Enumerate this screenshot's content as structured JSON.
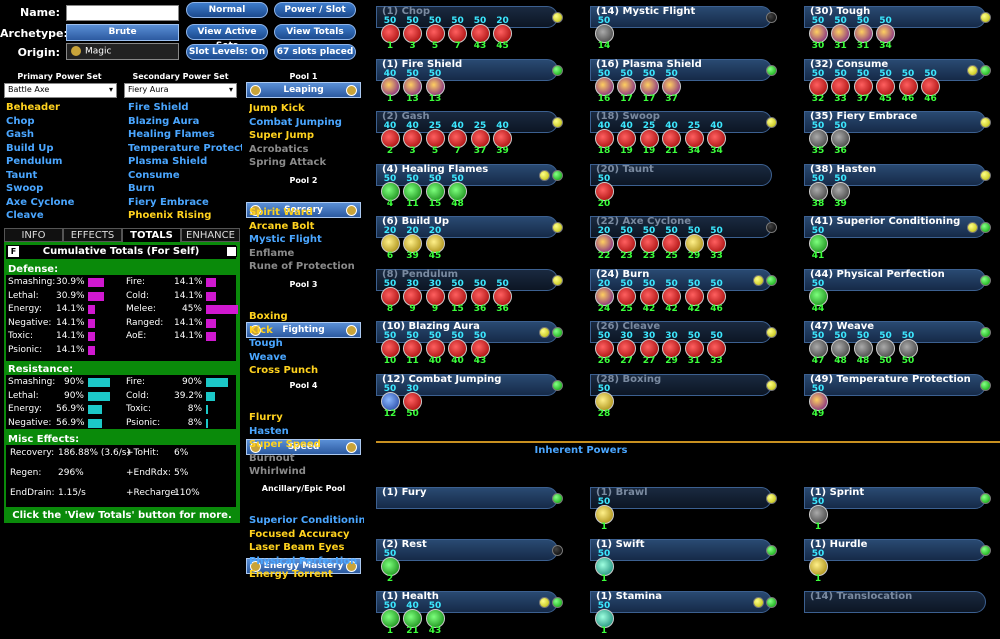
{
  "form": {
    "name_label": "Name:",
    "name_value": "",
    "archetype_label": "Archetype:",
    "archetype_value": "Brute",
    "origin_label": "Origin:",
    "origin_value": "Magic"
  },
  "buttons": {
    "normal": "Normal",
    "power_slot": "Power / Slot",
    "view_active_sets": "View Active Sets",
    "view_totals": "View Totals",
    "slot_levels": "Slot Levels: On",
    "slots_placed": "67 slots placed"
  },
  "primary": {
    "header": "Primary Power Set",
    "selected": "Battle Axe",
    "powers": [
      {
        "n": "Beheader",
        "c": "y"
      },
      {
        "n": "Chop",
        "c": "b"
      },
      {
        "n": "Gash",
        "c": "b"
      },
      {
        "n": "Build Up",
        "c": "b"
      },
      {
        "n": "Pendulum",
        "c": "b"
      },
      {
        "n": "Taunt",
        "c": "b"
      },
      {
        "n": "Swoop",
        "c": "b"
      },
      {
        "n": "Axe Cyclone",
        "c": "b"
      },
      {
        "n": "Cleave",
        "c": "b"
      }
    ]
  },
  "secondary": {
    "header": "Secondary Power Set",
    "selected": "Fiery Aura",
    "powers": [
      {
        "n": "Fire Shield",
        "c": "b"
      },
      {
        "n": "Blazing Aura",
        "c": "b"
      },
      {
        "n": "Healing Flames",
        "c": "b"
      },
      {
        "n": "Temperature Protecti",
        "c": "b"
      },
      {
        "n": "Plasma Shield",
        "c": "b"
      },
      {
        "n": "Consume",
        "c": "b"
      },
      {
        "n": "Burn",
        "c": "b"
      },
      {
        "n": "Fiery Embrace",
        "c": "b"
      },
      {
        "n": "Phoenix Rising",
        "c": "y"
      }
    ]
  },
  "pools": [
    {
      "header": "Pool 1",
      "name": "Leaping",
      "powers": [
        {
          "n": "Jump Kick",
          "c": "y"
        },
        {
          "n": "Combat Jumping",
          "c": "b"
        },
        {
          "n": "Super Jump",
          "c": "y"
        },
        {
          "n": "Acrobatics",
          "c": "g"
        },
        {
          "n": "Spring Attack",
          "c": "g"
        }
      ]
    },
    {
      "header": "Pool 2",
      "name": "Sorcery",
      "powers": [
        {
          "n": "Spirit Ward",
          "c": "y"
        },
        {
          "n": "Arcane Bolt",
          "c": "y"
        },
        {
          "n": "Mystic Flight",
          "c": "b"
        },
        {
          "n": "Enflame",
          "c": "g"
        },
        {
          "n": "Rune of Protection",
          "c": "g"
        }
      ]
    },
    {
      "header": "Pool 3",
      "name": "Fighting",
      "powers": [
        {
          "n": "Boxing",
          "c": "y"
        },
        {
          "n": "Kick",
          "c": "y"
        },
        {
          "n": "Tough",
          "c": "b"
        },
        {
          "n": "Weave",
          "c": "b"
        },
        {
          "n": "Cross Punch",
          "c": "y"
        }
      ]
    },
    {
      "header": "Pool 4",
      "name": "Speed",
      "powers": [
        {
          "n": "Flurry",
          "c": "y"
        },
        {
          "n": "Hasten",
          "c": "b"
        },
        {
          "n": "Super Speed",
          "c": "y"
        },
        {
          "n": "Burnout",
          "c": "g"
        },
        {
          "n": "Whirlwind",
          "c": "g"
        }
      ]
    },
    {
      "header": "Ancillary/Epic Pool",
      "name": "Energy Mastery",
      "powers": [
        {
          "n": "Superior Conditionin",
          "c": "b"
        },
        {
          "n": "Focused Accuracy",
          "c": "y"
        },
        {
          "n": "Laser Beam Eyes",
          "c": "y"
        },
        {
          "n": "Physical Perfection",
          "c": "b"
        },
        {
          "n": "Energy Torrent",
          "c": "y"
        }
      ]
    }
  ],
  "tabs": [
    "INFO",
    "EFFECTS",
    "TOTALS",
    "ENHANCE"
  ],
  "totals": {
    "title": "Cumulative Totals (For Self)",
    "f_label": "F",
    "defense_label": "Defense:",
    "resistance_label": "Resistance:",
    "misc_label": "Misc Effects:",
    "footer": "Click the 'View Totals' button for more.",
    "defense": [
      {
        "k": "Smashing:",
        "v": "30.9%",
        "f": 0.31
      },
      {
        "k": "Lethal:",
        "v": "30.9%",
        "f": 0.31
      },
      {
        "k": "Energy:",
        "v": "14.1%",
        "f": 0.14
      },
      {
        "k": "Negative:",
        "v": "14.1%",
        "f": 0.14
      },
      {
        "k": "Toxic:",
        "v": "14.1%",
        "f": 0.14
      },
      {
        "k": "Psionic:",
        "v": "14.1%",
        "f": 0.14
      }
    ],
    "defense2": [
      {
        "k": "Fire:",
        "v": "14.1%",
        "f": 0.14
      },
      {
        "k": "Cold:",
        "v": "14.1%",
        "f": 0.14
      },
      {
        "k": "Melee:",
        "v": "45%",
        "f": 0.45
      },
      {
        "k": "Ranged:",
        "v": "14.1%",
        "f": 0.14
      },
      {
        "k": "AoE:",
        "v": "14.1%",
        "f": 0.14
      }
    ],
    "resistance": [
      {
        "k": "Smashing:",
        "v": "90%",
        "f": 0.9
      },
      {
        "k": "Lethal:",
        "v": "90%",
        "f": 0.9
      },
      {
        "k": "Energy:",
        "v": "56.9%",
        "f": 0.57
      },
      {
        "k": "Negative:",
        "v": "56.9%",
        "f": 0.57
      }
    ],
    "resistance2": [
      {
        "k": "Fire:",
        "v": "90%",
        "f": 0.9
      },
      {
        "k": "Cold:",
        "v": "39.2%",
        "f": 0.39
      },
      {
        "k": "Toxic:",
        "v": "8%",
        "f": 0.08
      },
      {
        "k": "Psionic:",
        "v": "8%",
        "f": 0.08
      }
    ],
    "misc": [
      {
        "k": "Recovery:",
        "v": "186.88% (3.6/s)"
      },
      {
        "k": "+ToHit:",
        "v": "6%"
      },
      {
        "k": "Regen:",
        "v": "296%"
      },
      {
        "k": "+EndRdx:",
        "v": "5%"
      },
      {
        "k": "EndDrain:",
        "v": "1.15/s"
      },
      {
        "k": "+Recharge:",
        "v": "110%"
      }
    ]
  },
  "inherent_label": "Inherent Powers",
  "build": [
    {
      "t": "(1) Chop",
      "d": 1,
      "dots": [
        "gy"
      ],
      "s": [
        [
          50,
          "1",
          "red"
        ],
        [
          50,
          "3",
          "red"
        ],
        [
          50,
          "5",
          "red"
        ],
        [
          50,
          "7",
          "red"
        ],
        [
          50,
          "43",
          "red"
        ],
        [
          20,
          "45",
          "red"
        ]
      ]
    },
    {
      "t": "(14) Mystic Flight",
      "d": 0,
      "dots": [
        "bk"
      ],
      "s": [
        [
          50,
          "14",
          "gry"
        ]
      ]
    },
    {
      "t": "(30) Tough",
      "d": 0,
      "dots": [
        "gy"
      ],
      "s": [
        [
          50,
          "30",
          "pur"
        ],
        [
          50,
          "31",
          "pur"
        ],
        [
          50,
          "31",
          "pur"
        ],
        [
          50,
          "34",
          "pur"
        ]
      ]
    },
    {
      "t": "(1) Fire Shield",
      "d": 0,
      "dots": [
        "gn"
      ],
      "s": [
        [
          40,
          "1",
          "pur"
        ],
        [
          50,
          "13",
          "pur"
        ],
        [
          50,
          "13",
          "pur"
        ]
      ]
    },
    {
      "t": "(16) Plasma Shield",
      "d": 0,
      "dots": [
        "gn"
      ],
      "s": [
        [
          50,
          "16",
          "pur"
        ],
        [
          50,
          "17",
          "pur"
        ],
        [
          50,
          "17",
          "pur"
        ],
        [
          50,
          "37",
          "pur"
        ]
      ]
    },
    {
      "t": "(32) Consume",
      "d": 0,
      "dots": [
        "gy",
        "gn"
      ],
      "s": [
        [
          50,
          "32",
          "red"
        ],
        [
          50,
          "33",
          "red"
        ],
        [
          50,
          "37",
          "red"
        ],
        [
          50,
          "45",
          "red"
        ],
        [
          50,
          "46",
          "red"
        ],
        [
          50,
          "46",
          "red"
        ]
      ]
    },
    {
      "t": "(2) Gash",
      "d": 1,
      "dots": [
        "gy"
      ],
      "s": [
        [
          40,
          "2",
          "red"
        ],
        [
          40,
          "3",
          "red"
        ],
        [
          25,
          "5",
          "red"
        ],
        [
          40,
          "7",
          "red"
        ],
        [
          25,
          "37",
          "red"
        ],
        [
          40,
          "39",
          "red"
        ]
      ]
    },
    {
      "t": "(18) Swoop",
      "d": 1,
      "dots": [
        "gy"
      ],
      "s": [
        [
          40,
          "18",
          "red"
        ],
        [
          40,
          "19",
          "red"
        ],
        [
          25,
          "19",
          "red"
        ],
        [
          40,
          "21",
          "red"
        ],
        [
          25,
          "34",
          "red"
        ],
        [
          40,
          "34",
          "red"
        ]
      ]
    },
    {
      "t": "(35) Fiery Embrace",
      "d": 0,
      "dots": [
        "gy"
      ],
      "s": [
        [
          50,
          "35",
          "gry"
        ],
        [
          50,
          "36",
          "gry"
        ]
      ]
    },
    {
      "t": "(4) Healing Flames",
      "d": 0,
      "dots": [
        "gy",
        "gn"
      ],
      "s": [
        [
          50,
          "4",
          "grn"
        ],
        [
          50,
          "11",
          "grn"
        ],
        [
          50,
          "15",
          "grn"
        ],
        [
          50,
          "48",
          "grn"
        ]
      ]
    },
    {
      "t": "(20) Taunt",
      "d": 1,
      "dots": [],
      "s": [
        [
          50,
          "20",
          "red"
        ]
      ]
    },
    {
      "t": "(38) Hasten",
      "d": 0,
      "dots": [
        "gy"
      ],
      "s": [
        [
          50,
          "38",
          "gry"
        ],
        [
          50,
          "39",
          "gry"
        ]
      ]
    },
    {
      "t": "(6) Build Up",
      "d": 0,
      "dots": [
        "gy"
      ],
      "s": [
        [
          20,
          "6",
          "yel"
        ],
        [
          20,
          "39",
          "yel"
        ],
        [
          20,
          "45",
          "yel"
        ]
      ]
    },
    {
      "t": "(22) Axe Cyclone",
      "d": 1,
      "dots": [
        "bk"
      ],
      "s": [
        [
          20,
          "22",
          "pur"
        ],
        [
          50,
          "23",
          "red"
        ],
        [
          50,
          "23",
          "red"
        ],
        [
          50,
          "25",
          "red"
        ],
        [
          50,
          "29",
          "yel"
        ],
        [
          50,
          "33",
          "red"
        ]
      ]
    },
    {
      "t": "(41) Superior Conditioning",
      "d": 0,
      "dots": [
        "gy",
        "gn"
      ],
      "s": [
        [
          50,
          "41",
          "grn"
        ]
      ]
    },
    {
      "t": "(8) Pendulum",
      "d": 1,
      "dots": [
        "gy"
      ],
      "s": [
        [
          50,
          "8",
          "red"
        ],
        [
          30,
          "9",
          "red"
        ],
        [
          30,
          "9",
          "red"
        ],
        [
          50,
          "15",
          "red"
        ],
        [
          50,
          "36",
          "red"
        ],
        [
          50,
          "36",
          "red"
        ]
      ]
    },
    {
      "t": "(24) Burn",
      "d": 0,
      "dots": [
        "gy",
        "gn"
      ],
      "s": [
        [
          20,
          "24",
          "pur"
        ],
        [
          50,
          "25",
          "red"
        ],
        [
          50,
          "42",
          "red"
        ],
        [
          50,
          "42",
          "red"
        ],
        [
          50,
          "42",
          "red"
        ],
        [
          50,
          "46",
          "red"
        ]
      ]
    },
    {
      "t": "(44) Physical Perfection",
      "d": 0,
      "dots": [
        "gn"
      ],
      "s": [
        [
          50,
          "44",
          "grn"
        ]
      ]
    },
    {
      "t": "(10) Blazing Aura",
      "d": 0,
      "dots": [
        "gy",
        "gn"
      ],
      "s": [
        [
          50,
          "10",
          "red"
        ],
        [
          50,
          "11",
          "red"
        ],
        [
          50,
          "40",
          "red"
        ],
        [
          50,
          "40",
          "red"
        ],
        [
          50,
          "43",
          "red"
        ]
      ]
    },
    {
      "t": "(26) Cleave",
      "d": 1,
      "dots": [
        "gy"
      ],
      "s": [
        [
          50,
          "26",
          "red"
        ],
        [
          30,
          "27",
          "red"
        ],
        [
          30,
          "27",
          "red"
        ],
        [
          30,
          "29",
          "red"
        ],
        [
          50,
          "31",
          "red"
        ],
        [
          50,
          "33",
          "red"
        ]
      ]
    },
    {
      "t": "(47) Weave",
      "d": 0,
      "dots": [
        "gn"
      ],
      "s": [
        [
          50,
          "47",
          "gry"
        ],
        [
          50,
          "48",
          "gry"
        ],
        [
          50,
          "48",
          "gry"
        ],
        [
          50,
          "50",
          "gry"
        ],
        [
          50,
          "50",
          "gry"
        ]
      ]
    },
    {
      "t": "(12) Combat Jumping",
      "d": 0,
      "dots": [
        "gn"
      ],
      "s": [
        [
          50,
          "12",
          "blu"
        ],
        [
          30,
          "50",
          "red"
        ]
      ]
    },
    {
      "t": "(28) Boxing",
      "d": 1,
      "dots": [
        "gy"
      ],
      "s": [
        [
          50,
          "28",
          "yel"
        ]
      ]
    },
    {
      "t": "(49) Temperature Protection",
      "d": 0,
      "dots": [
        "gn"
      ],
      "s": [
        [
          50,
          "49",
          "pur"
        ]
      ]
    }
  ],
  "inherent": [
    {
      "t": "(1) Fury",
      "d": 0,
      "dots": [
        "gn"
      ],
      "s": []
    },
    {
      "t": "(1) Brawl",
      "d": 1,
      "dots": [
        "gy"
      ],
      "s": [
        [
          50,
          "1",
          "yel"
        ]
      ]
    },
    {
      "t": "(1) Sprint",
      "d": 0,
      "dots": [
        "gn"
      ],
      "s": [
        [
          50,
          "1",
          "gry"
        ]
      ]
    },
    {
      "t": "(2) Rest",
      "d": 0,
      "dots": [
        "bk"
      ],
      "s": [
        [
          50,
          "2",
          "grn"
        ]
      ]
    },
    {
      "t": "(1) Swift",
      "d": 0,
      "dots": [
        "gn"
      ],
      "s": [
        [
          50,
          "1",
          "teal"
        ]
      ]
    },
    {
      "t": "(1) Hurdle",
      "d": 0,
      "dots": [
        "gn"
      ],
      "s": [
        [
          50,
          "1",
          "yel"
        ]
      ]
    },
    {
      "t": "(1) Health",
      "d": 0,
      "dots": [
        "gy",
        "gn"
      ],
      "s": [
        [
          50,
          "1",
          "grn"
        ],
        [
          40,
          "21",
          "grn"
        ],
        [
          50,
          "43",
          "grn"
        ]
      ]
    },
    {
      "t": "(1) Stamina",
      "d": 0,
      "dots": [
        "gy",
        "gn"
      ],
      "s": [
        [
          50,
          "1",
          "teal"
        ]
      ]
    },
    {
      "t": "(14) Translocation",
      "d": 1,
      "dots": [],
      "s": []
    }
  ]
}
